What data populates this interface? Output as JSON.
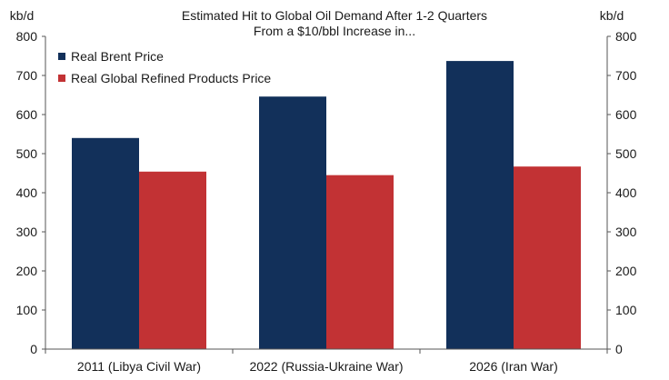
{
  "chart_data": {
    "type": "bar",
    "title_line1": "Estimated Hit to Global Oil Demand After 1-2 Quarters",
    "title_line2": "From a $10/bbl Increase in...",
    "ylabel_left": "kb/d",
    "ylabel_right": "kb/d",
    "ylim": [
      0,
      800
    ],
    "yticks": [
      "0",
      "100",
      "200",
      "300",
      "400",
      "500",
      "600",
      "700",
      "800"
    ],
    "categories": [
      "2011 (Libya Civil War)",
      "2022 (Russia-Ukraine War)",
      "2026 (Iran War)"
    ],
    "series": [
      {
        "name": "Real Brent Price",
        "color": "#12305a",
        "values": [
          540,
          646,
          737
        ]
      },
      {
        "name": "Real Global Refined Products Price",
        "color": "#c23234",
        "values": [
          454,
          445,
          467
        ]
      }
    ],
    "legend_position": "top-left"
  }
}
